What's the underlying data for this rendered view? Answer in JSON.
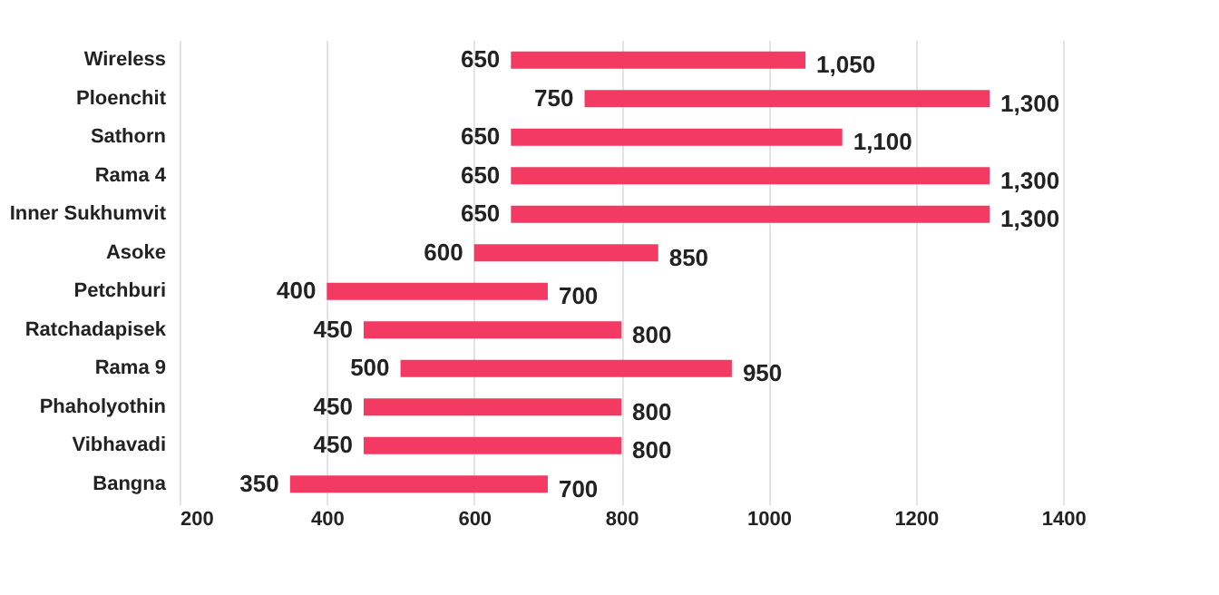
{
  "chart_data": {
    "type": "bar",
    "orientation": "horizontal",
    "categories": [
      "Wireless",
      "Ploenchit",
      "Sathorn",
      "Rama 4",
      "Inner Sukhumvit",
      "Asoke",
      "Petchburi",
      "Ratchadapisek",
      "Rama 9",
      "Phaholyothin",
      "Vibhavadi",
      "Bangna"
    ],
    "base": [
      650,
      750,
      650,
      650,
      650,
      600,
      400,
      450,
      500,
      450,
      450,
      350
    ],
    "values": [
      400,
      550,
      450,
      650,
      650,
      250,
      300,
      350,
      450,
      350,
      350,
      350
    ],
    "color": "#f23a62",
    "xlim": [
      200,
      1550
    ],
    "xticks": [
      200,
      400,
      600,
      800,
      1000,
      1200,
      1400
    ],
    "grid": "x",
    "annotations": [
      {
        "text": "650",
        "x": 650,
        "y": "Wireless"
      },
      {
        "text": "1,050",
        "x": 1050,
        "y": "Wireless"
      },
      {
        "text": "750",
        "x": 750,
        "y": "Ploenchit"
      },
      {
        "text": "1,300",
        "x": 1300,
        "y": "Ploenchit"
      },
      {
        "text": "650",
        "x": 650,
        "y": "Sathorn"
      },
      {
        "text": "1,100",
        "x": 1100,
        "y": "Sathorn"
      },
      {
        "text": "650",
        "x": 650,
        "y": "Rama 4"
      },
      {
        "text": "1,300",
        "x": 1300,
        "y": "Rama 4"
      },
      {
        "text": "650",
        "x": 650,
        "y": "Inner Sukhumvit"
      },
      {
        "text": "1,300",
        "x": 1300,
        "y": "Inner Sukhumvit"
      },
      {
        "text": "600",
        "x": 600,
        "y": "Asoke"
      },
      {
        "text": "850",
        "x": 850,
        "y": "Asoke"
      },
      {
        "text": "400",
        "x": 400,
        "y": "Petchburi"
      },
      {
        "text": "700",
        "x": 700,
        "y": "Petchburi"
      },
      {
        "text": "450",
        "x": 450,
        "y": "Ratchadapisek"
      },
      {
        "text": "800",
        "x": 800,
        "y": "Ratchadapisek"
      },
      {
        "text": "500",
        "x": 500,
        "y": "Rama 9"
      },
      {
        "text": "950",
        "x": 950,
        "y": "Rama 9"
      },
      {
        "text": "450",
        "x": 450,
        "y": "Phaholyothin"
      },
      {
        "text": "800",
        "x": 800,
        "y": "Phaholyothin"
      },
      {
        "text": "450",
        "x": 450,
        "y": "Vibhavadi"
      },
      {
        "text": "800",
        "x": 800,
        "y": "Vibhavadi"
      },
      {
        "text": "350",
        "x": 350,
        "y": "Bangna"
      },
      {
        "text": "700",
        "x": 700,
        "y": "Bangna"
      }
    ]
  }
}
